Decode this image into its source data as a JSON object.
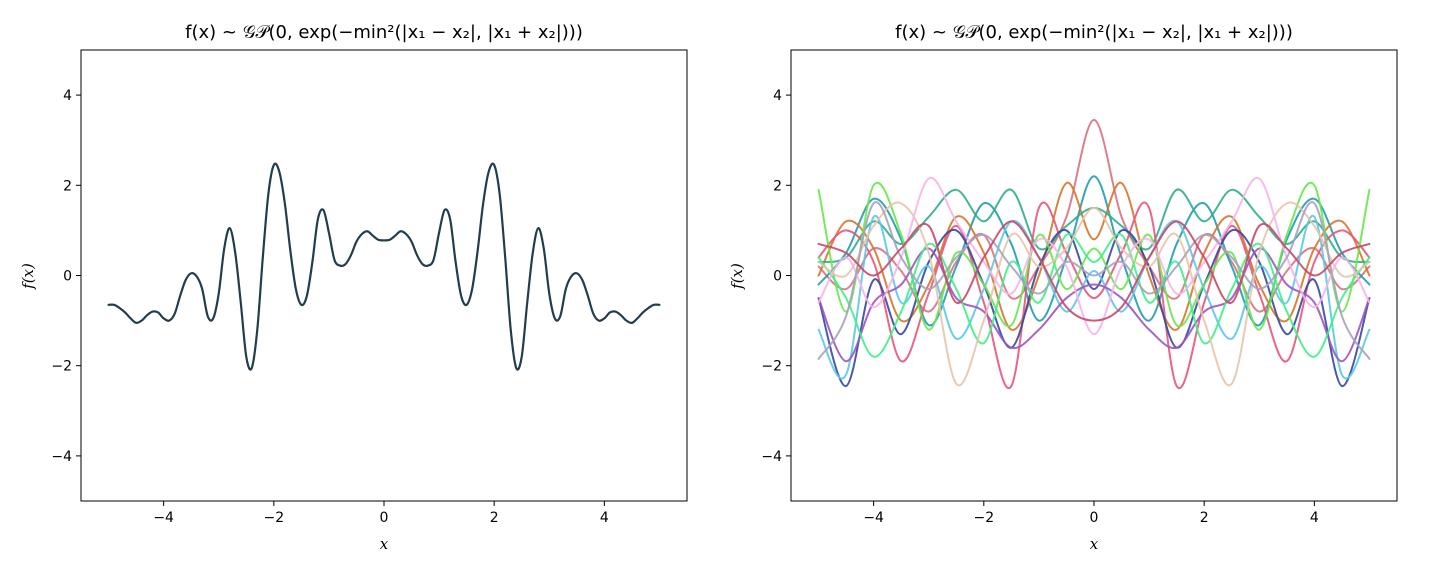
{
  "chart_data": [
    {
      "type": "line",
      "title": "f(x) ~ 𝒢𝒫(0, exp(−min²(|x₁ − x₂|, |x₁ + x₂|)))",
      "xlabel": "x",
      "ylabel": "f(x)",
      "xlim": [
        -5.5,
        5.5
      ],
      "ylim": [
        -5,
        5
      ],
      "xticks": [
        -4,
        -2,
        0,
        2,
        4
      ],
      "yticks": [
        -4,
        -2,
        0,
        2,
        4
      ],
      "xtick_labels": [
        "−4",
        "−2",
        "0",
        "2",
        "4"
      ],
      "ytick_labels": [
        "−4",
        "−2",
        "0",
        "2",
        "4"
      ],
      "grid": false,
      "series": [
        {
          "color": "#233d4d",
          "x": [
            0,
            0.1,
            0.2,
            0.3,
            0.4,
            0.5,
            0.6,
            0.7,
            0.8,
            0.9,
            1.0,
            1.1,
            1.2,
            1.3,
            1.4,
            1.5,
            1.6,
            1.7,
            1.8,
            1.9,
            2.0,
            2.1,
            2.2,
            2.3,
            2.4,
            2.5,
            2.6,
            2.7,
            2.8,
            2.9,
            3.0,
            3.1,
            3.2,
            3.3,
            3.4,
            3.5,
            3.6,
            3.7,
            3.8,
            3.9,
            4.0,
            4.1,
            4.2,
            4.3,
            4.4,
            4.5,
            4.6,
            4.7,
            4.8,
            4.9,
            5.0
          ],
          "y": [
            0.78,
            0.79,
            0.88,
            0.98,
            0.92,
            0.75,
            0.45,
            0.25,
            0.22,
            0.35,
            0.95,
            1.45,
            1.25,
            0.3,
            -0.45,
            -0.65,
            -0.3,
            0.55,
            1.6,
            2.3,
            2.45,
            1.8,
            0.4,
            -1.2,
            -2.05,
            -1.8,
            -0.6,
            0.5,
            1.05,
            0.6,
            -0.4,
            -0.95,
            -0.9,
            -0.3,
            -0.02,
            0.05,
            -0.1,
            -0.45,
            -0.85,
            -1.0,
            -0.95,
            -0.82,
            -0.8,
            -0.88,
            -1.0,
            -1.05,
            -0.95,
            -0.82,
            -0.72,
            -0.65,
            -0.65
          ]
        }
      ]
    },
    {
      "type": "line",
      "title": "f(x) ~ 𝒢𝒫(0, exp(−min²(|x₁ − x₂|, |x₁ + x₂|)))",
      "xlabel": "x",
      "ylabel": "f(x)",
      "xlim": [
        -5.5,
        5.5
      ],
      "ylim": [
        -5,
        5
      ],
      "xticks": [
        -4,
        -2,
        0,
        2,
        4
      ],
      "yticks": [
        -4,
        -2,
        0,
        2,
        4
      ],
      "xtick_labels": [
        "−4",
        "−2",
        "0",
        "2",
        "4"
      ],
      "ytick_labels": [
        "−4",
        "−2",
        "0",
        "2",
        "4"
      ],
      "grid": false,
      "series": [
        {
          "color": "#dc7080",
          "x": [
            0,
            0.5,
            1.0,
            1.5,
            2.0,
            2.5,
            3.0,
            3.5,
            4.0,
            4.5,
            5.0
          ],
          "y": [
            3.45,
            1.3,
            0.2,
            -0.5,
            0.9,
            0.3,
            -0.8,
            0.1,
            0.6,
            -0.3,
            0.2
          ]
        },
        {
          "color": "#1f9bb0",
          "x": [
            0,
            0.5,
            1.0,
            1.5,
            2.0,
            2.5,
            3.0,
            3.5,
            4.0,
            4.5,
            5.0
          ],
          "y": [
            2.2,
            0.4,
            -1.0,
            0.7,
            1.6,
            0.2,
            -1.1,
            0.8,
            1.7,
            0.5,
            -0.2
          ]
        },
        {
          "color": "#d6762a",
          "x": [
            0,
            0.5,
            1.0,
            1.5,
            2.0,
            2.5,
            3.0,
            3.5,
            4.0,
            4.5,
            5.0
          ],
          "y": [
            0.8,
            2.05,
            0.0,
            -1.2,
            0.5,
            1.3,
            -0.2,
            -1.0,
            0.6,
            1.2,
            0.0
          ]
        },
        {
          "color": "#2fae8a",
          "x": [
            0,
            0.5,
            1.0,
            1.5,
            2.0,
            2.5,
            3.0,
            3.5,
            4.0,
            4.5,
            5.0
          ],
          "y": [
            1.5,
            1.1,
            0.6,
            1.9,
            1.2,
            1.9,
            1.3,
            0.7,
            1.2,
            0.4,
            0.3
          ]
        },
        {
          "color": "#e8547a",
          "x": [
            0,
            0.5,
            1.0,
            1.5,
            2.0,
            2.5,
            3.0,
            3.5,
            4.0,
            4.5,
            5.0
          ],
          "y": [
            -0.5,
            0.5,
            1.5,
            -2.45,
            -0.6,
            1.1,
            -0.4,
            -1.9,
            0.3,
            1.0,
            0.4
          ]
        },
        {
          "color": "#35489e",
          "x": [
            0,
            0.5,
            1.0,
            1.5,
            2.0,
            2.5,
            3.0,
            3.5,
            4.0,
            4.5,
            5.0
          ],
          "y": [
            -0.3,
            1.0,
            0.2,
            -1.6,
            -0.2,
            1.0,
            0.3,
            -1.3,
            -0.1,
            -2.45,
            -0.5
          ]
        },
        {
          "color": "#5ac8e8",
          "x": [
            0,
            0.5,
            1.0,
            1.5,
            2.0,
            2.5,
            3.0,
            3.5,
            4.0,
            4.5,
            5.0
          ],
          "y": [
            0.1,
            -0.8,
            0.4,
            1.2,
            -0.3,
            -1.4,
            0.2,
            -0.6,
            1.3,
            -2.2,
            -1.2
          ]
        },
        {
          "color": "#67e84a",
          "x": [
            0,
            0.5,
            1.0,
            1.5,
            2.0,
            2.5,
            3.0,
            3.5,
            4.0,
            4.5,
            5.0
          ],
          "y": [
            0.6,
            -0.3,
            0.9,
            -1.1,
            -0.2,
            0.5,
            -1.2,
            0.9,
            2.0,
            -0.8,
            1.9
          ]
        },
        {
          "color": "#9a55c2",
          "x": [
            0,
            0.5,
            1.0,
            1.5,
            2.0,
            2.5,
            3.0,
            3.5,
            4.0,
            4.5,
            5.0
          ],
          "y": [
            -0.2,
            -0.5,
            -1.2,
            -1.6,
            -0.8,
            -0.5,
            0.6,
            -0.2,
            -0.6,
            -1.9,
            -0.5
          ]
        },
        {
          "color": "#3ef088",
          "x": [
            0,
            0.5,
            1.0,
            1.5,
            2.0,
            2.5,
            3.0,
            3.5,
            4.0,
            4.5,
            5.0
          ],
          "y": [
            0.3,
            0.9,
            -0.6,
            0.3,
            -1.5,
            -0.3,
            0.7,
            -0.8,
            -1.8,
            -0.5,
            0.4
          ]
        },
        {
          "color": "#e8c4a8",
          "x": [
            0,
            0.5,
            1.0,
            1.5,
            2.0,
            2.5,
            3.0,
            3.5,
            4.0,
            4.5,
            5.0
          ],
          "y": [
            1.5,
            0.6,
            0.2,
            0.9,
            -1.0,
            -2.4,
            0.5,
            1.6,
            1.1,
            0.0,
            0.3
          ]
        },
        {
          "color": "#f7b4e8",
          "x": [
            0,
            0.5,
            1.0,
            1.5,
            2.0,
            2.5,
            3.0,
            3.5,
            4.0,
            4.5,
            5.0
          ],
          "y": [
            -1.3,
            0.2,
            0.8,
            -0.4,
            0.3,
            1.2,
            2.15,
            0.4,
            -0.7,
            0.4,
            -0.6
          ]
        },
        {
          "color": "#a9a0bf",
          "x": [
            0,
            0.5,
            1.0,
            1.5,
            2.0,
            2.5,
            3.0,
            3.5,
            4.0,
            4.5,
            5.0
          ],
          "y": [
            0.0,
            0.3,
            -0.4,
            0.2,
            0.9,
            0.4,
            -0.3,
            0.4,
            1.6,
            -0.9,
            -1.85
          ]
        },
        {
          "color": "#c94868",
          "x": [
            0,
            0.5,
            1.0,
            1.5,
            2.0,
            2.5,
            3.0,
            3.5,
            4.0,
            4.5,
            5.0
          ],
          "y": [
            -1.0,
            -0.7,
            0.4,
            1.2,
            0.4,
            -0.6,
            1.1,
            0.6,
            0.0,
            0.5,
            0.7
          ]
        }
      ]
    }
  ]
}
